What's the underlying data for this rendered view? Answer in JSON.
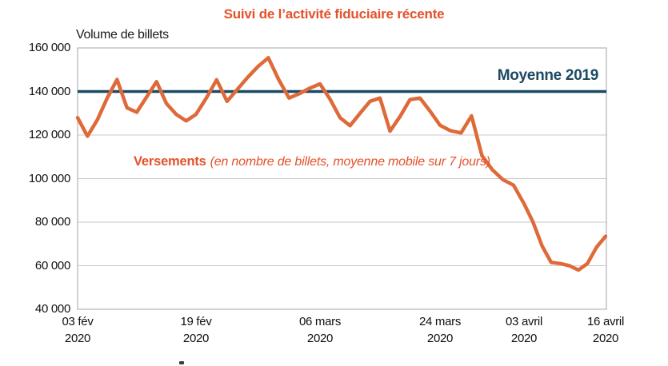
{
  "title": {
    "text": "Suivi de l’activité fiduciaire récente",
    "color": "#e4512a"
  },
  "colors": {
    "series_orange": "#de6a3a",
    "label_orange": "#e4512a",
    "average_navy": "#1c4963",
    "grid": "#c9c9c9",
    "plot_border": "#b3b3b3",
    "axis_text": "#1a1a1a"
  },
  "chart_data": {
    "type": "line",
    "title": "Suivi de l’activité fiduciaire récente",
    "ylabel_heading": "Volume de billets",
    "series_label": {
      "bold": "Versements",
      "italic": "(en nombre de billets, moyenne mobile sur 7 jours)"
    },
    "average_line": {
      "label": "Moyenne 2019",
      "value": 140000
    },
    "ylim": [
      40000,
      160000
    ],
    "ytick_step": 20000,
    "grid": "horizontal",
    "legend_position": "inline-annotations",
    "yticks": [
      {
        "label": "160 000",
        "value": 160000
      },
      {
        "label": "140 000",
        "value": 140000
      },
      {
        "label": "120 000",
        "value": 120000
      },
      {
        "label": "100 000",
        "value": 100000
      },
      {
        "label": "80 000",
        "value": 80000
      },
      {
        "label": "60 000",
        "value": 60000
      },
      {
        "label": "40 000",
        "value": 40000
      }
    ],
    "xticks": [
      {
        "index": 0,
        "label": "03 fév",
        "year": "2020"
      },
      {
        "index": 12,
        "label": "19 fév",
        "year": "2020"
      },
      {
        "index": 24,
        "label": "06 mars",
        "year": "2020"
      },
      {
        "index": 36,
        "label": "24 mars",
        "year": "2020"
      },
      {
        "index": 44,
        "label": "03 avril",
        "year": "2020"
      },
      {
        "index": 53,
        "label": "16 avril",
        "year": "2020"
      }
    ],
    "series": [
      {
        "name": "Versements (moyenne mobile 7 jours)",
        "dates": [
          "03 fév",
          "04 fév",
          "05 fév",
          "06 fév",
          "07 fév",
          "10 fév",
          "11 fév",
          "12 fév",
          "13 fév",
          "14 fév",
          "17 fév",
          "18 fév",
          "19 fév",
          "20 fév",
          "21 fév",
          "24 fév",
          "25 fév",
          "26 fév",
          "27 fév",
          "28 fév",
          "02 mars",
          "03 mars",
          "04 mars",
          "05 mars",
          "06 mars",
          "09 mars",
          "10 mars",
          "11 mars",
          "12 mars",
          "13 mars",
          "16 mars",
          "17 mars",
          "18 mars",
          "19 mars",
          "20 mars",
          "23 mars",
          "24 mars",
          "25 mars",
          "26 mars",
          "27 mars",
          "30 mars",
          "31 mars",
          "01 avril",
          "02 avril",
          "03 avril",
          "06 avril",
          "07 avril",
          "08 avril",
          "09 avril",
          "10 avril",
          "13 avril",
          "14 avril",
          "15 avril",
          "16 avril"
        ],
        "values": [
          128000,
          119500,
          127000,
          137000,
          145500,
          132500,
          130500,
          137500,
          144500,
          134500,
          129500,
          126500,
          129500,
          137000,
          145400,
          135500,
          141000,
          146500,
          151500,
          155500,
          145500,
          137000,
          139000,
          141500,
          143500,
          136500,
          128000,
          124300,
          130000,
          135500,
          137000,
          121800,
          128500,
          136300,
          137000,
          131000,
          124500,
          122000,
          121000,
          128800,
          110500,
          104000,
          99500,
          97000,
          88500,
          80000,
          69000,
          61500,
          61000,
          60000,
          58000,
          61000,
          68500,
          73500
        ]
      }
    ]
  }
}
